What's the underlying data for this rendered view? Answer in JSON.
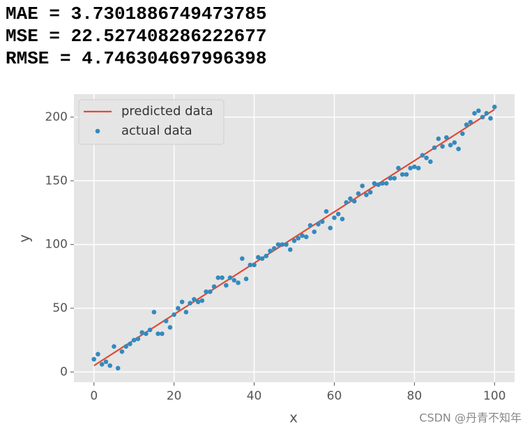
{
  "output_lines": [
    "MAE = 3.7301886749473785",
    "MSE = 22.527408286222677",
    "RMSE = 4.746304697996398"
  ],
  "chart_data": {
    "type": "scatter",
    "xlabel": "x",
    "ylabel": "y",
    "xlim": [
      -5,
      105
    ],
    "ylim": [
      -8,
      218
    ],
    "xticks": [
      0,
      20,
      40,
      60,
      80,
      100
    ],
    "yticks": [
      0,
      50,
      100,
      150,
      200
    ],
    "grid": true,
    "legend": "upper left",
    "series": [
      {
        "name": "predicted data",
        "style": "line",
        "color": "#E24A33",
        "x": [
          0,
          100
        ],
        "values": [
          5,
          206
        ]
      },
      {
        "name": "actual data",
        "style": "points",
        "color": "#348ABD",
        "x": [
          0,
          1,
          2,
          3,
          4,
          5,
          6,
          7,
          8,
          9,
          10,
          11,
          12,
          13,
          14,
          15,
          16,
          17,
          18,
          19,
          20,
          21,
          22,
          23,
          24,
          25,
          26,
          27,
          28,
          29,
          30,
          31,
          32,
          33,
          34,
          35,
          36,
          37,
          38,
          39,
          40,
          41,
          42,
          43,
          44,
          45,
          46,
          47,
          48,
          49,
          50,
          51,
          52,
          53,
          54,
          55,
          56,
          57,
          58,
          59,
          60,
          61,
          62,
          63,
          64,
          65,
          66,
          67,
          68,
          69,
          70,
          71,
          72,
          73,
          74,
          75,
          76,
          77,
          78,
          79,
          80,
          81,
          82,
          83,
          84,
          85,
          86,
          87,
          88,
          89,
          90,
          91,
          92,
          93,
          94,
          95,
          96,
          97,
          98,
          99,
          100
        ],
        "values": [
          10,
          14,
          6,
          8,
          5,
          20,
          3,
          16,
          20,
          22,
          25,
          26,
          31,
          30,
          33,
          47,
          30,
          30,
          40,
          35,
          45,
          50,
          55,
          47,
          54,
          57,
          55,
          56,
          63,
          63,
          67,
          74,
          74,
          68,
          74,
          72,
          70,
          89,
          73,
          84,
          84,
          90,
          89,
          91,
          95,
          97,
          100,
          100,
          100,
          96,
          103,
          105,
          107,
          106,
          115,
          110,
          116,
          118,
          126,
          113,
          121,
          124,
          120,
          133,
          136,
          134,
          140,
          146,
          139,
          141,
          148,
          147,
          148,
          148,
          152,
          152,
          160,
          155,
          155,
          160,
          161,
          160,
          170,
          168,
          165,
          176,
          183,
          177,
          184,
          178,
          180,
          175,
          187,
          194,
          196,
          203,
          205,
          200,
          203,
          199,
          208
        ]
      }
    ]
  },
  "watermark": "CSDN @丹青不知年"
}
